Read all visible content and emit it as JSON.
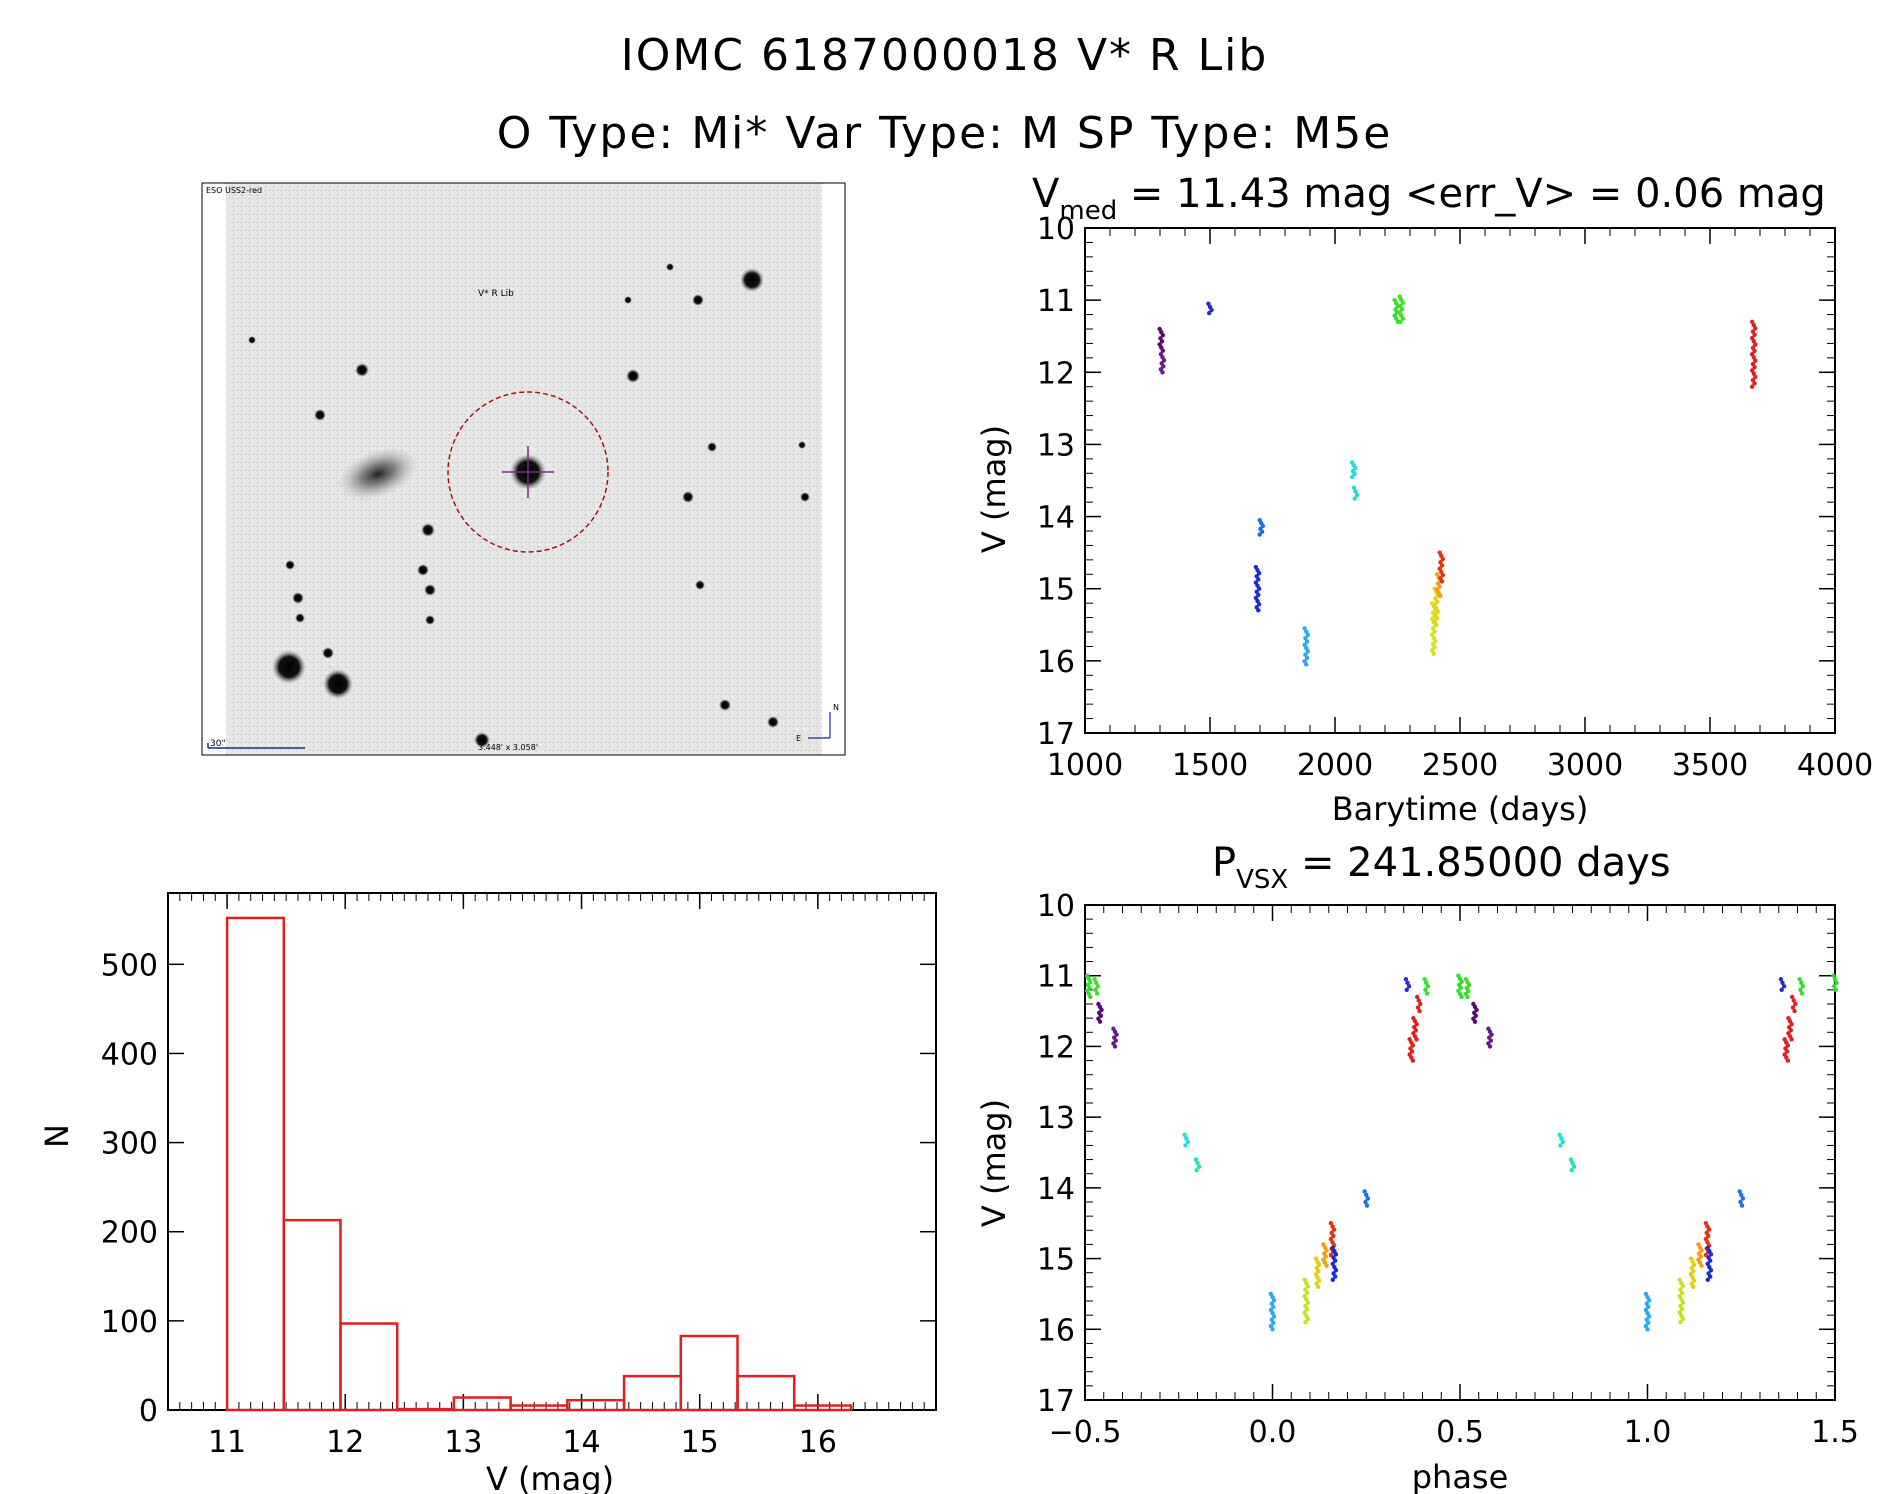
{
  "header": {
    "title_line1": "IOMC 6187000018   V* R Lib",
    "title_line2": "O Type: Mi*  Var Type: M  SP Type: M5e"
  },
  "sky_image": {
    "survey_label": "ESO USS2-red",
    "target_label": "V* R Lib",
    "scale_label": "30\"",
    "size_label": "3.448' x 3.058'",
    "compass_n": "N",
    "compass_e": "E"
  },
  "chart_data": [
    {
      "type": "scatter",
      "name": "light-curve",
      "title_prefix": "V",
      "title_subscript": "med",
      "title_rest": "= 11.43 mag <err_V> = 0.06 mag",
      "xlabel": "Barytime (days)",
      "ylabel": "V (mag)",
      "xlim": [
        1000,
        4000
      ],
      "ylim": [
        10,
        17
      ],
      "y_inverted": true,
      "xticks": [
        1000,
        1500,
        2000,
        2500,
        3000,
        3500,
        4000
      ],
      "yticks": [
        10,
        11,
        12,
        13,
        14,
        15,
        16,
        17
      ],
      "clusters": [
        {
          "x": 1305,
          "y": [
            11.4,
            11.7
          ],
          "color": "#5a0a6e"
        },
        {
          "x": 1310,
          "y": [
            11.75,
            12.0
          ],
          "color": "#6a1a8e"
        },
        {
          "x": 1500,
          "y": [
            11.05,
            11.18
          ],
          "color": "#2a2acc"
        },
        {
          "x": 1690,
          "y": [
            14.7,
            15.3
          ],
          "color": "#1a2ad8"
        },
        {
          "x": 1705,
          "y": [
            14.05,
            14.25
          ],
          "color": "#1a70e8"
        },
        {
          "x": 1885,
          "y": [
            15.55,
            16.05
          ],
          "color": "#2aa8f0"
        },
        {
          "x": 2075,
          "y": [
            13.25,
            13.45
          ],
          "color": "#20e0d8"
        },
        {
          "x": 2082,
          "y": [
            13.6,
            13.75
          ],
          "color": "#20e0c0"
        },
        {
          "x": 2245,
          "y": [
            11.0,
            11.3
          ],
          "color": "#30e030"
        },
        {
          "x": 2265,
          "y": [
            10.95,
            11.3
          ],
          "color": "#40e020"
        },
        {
          "x": 2395,
          "y": [
            15.2,
            15.9
          ],
          "color": "#d8e020"
        },
        {
          "x": 2405,
          "y": [
            15.0,
            15.5
          ],
          "color": "#e8d010"
        },
        {
          "x": 2415,
          "y": [
            14.8,
            15.1
          ],
          "color": "#f0a010"
        },
        {
          "x": 2425,
          "y": [
            14.5,
            14.9
          ],
          "color": "#e83010"
        },
        {
          "x": 3675,
          "y": [
            11.3,
            12.2
          ],
          "color": "#e02020"
        }
      ]
    },
    {
      "type": "bar",
      "name": "histogram",
      "xlabel": "V (mag)",
      "ylabel": "N",
      "xlim": [
        10.5,
        17.0
      ],
      "ylim": [
        0,
        580
      ],
      "xticks": [
        11,
        12,
        13,
        14,
        15,
        16
      ],
      "yticks": [
        0,
        100,
        200,
        300,
        400,
        500
      ],
      "bin_edges": [
        11.0,
        11.48,
        11.96,
        12.44,
        12.92,
        13.4,
        13.88,
        14.36,
        14.84,
        15.32,
        15.8,
        16.28
      ],
      "values": [
        552,
        213,
        97,
        1,
        14,
        5,
        11,
        38,
        83,
        38,
        5
      ],
      "color": "#e02020"
    },
    {
      "type": "scatter",
      "name": "phased-light-curve",
      "title_prefix": "P",
      "title_subscript": "VSX",
      "title_rest": "= 241.85000 days",
      "xlabel": "phase",
      "ylabel": "V (mag)",
      "xlim": [
        -0.5,
        1.5
      ],
      "ylim": [
        10,
        17
      ],
      "y_inverted": true,
      "xticks": [
        -0.5,
        0.0,
        0.5,
        1.0,
        1.5
      ],
      "xtick_labels": [
        "−0.5",
        "0.0",
        "0.5",
        "1.0",
        "1.5"
      ],
      "yticks": [
        10,
        11,
        12,
        13,
        14,
        15,
        16,
        17
      ],
      "clusters": [
        {
          "x": -0.49,
          "y": [
            11.0,
            11.3
          ],
          "color": "#30e030"
        },
        {
          "x": -0.47,
          "y": [
            11.05,
            11.25
          ],
          "color": "#40e020"
        },
        {
          "x": -0.46,
          "y": [
            11.4,
            11.65
          ],
          "color": "#5a0a6e"
        },
        {
          "x": -0.42,
          "y": [
            11.75,
            12.0
          ],
          "color": "#6a1a8e"
        },
        {
          "x": -0.23,
          "y": [
            13.25,
            13.4
          ],
          "color": "#20e0d8"
        },
        {
          "x": -0.2,
          "y": [
            13.6,
            13.75
          ],
          "color": "#20e0c0"
        },
        {
          "x": 0.0,
          "y": [
            15.5,
            16.0
          ],
          "color": "#2aa8f0"
        },
        {
          "x": 0.09,
          "y": [
            15.3,
            15.9
          ],
          "color": "#c8e020"
        },
        {
          "x": 0.12,
          "y": [
            15.0,
            15.4
          ],
          "color": "#e0d010"
        },
        {
          "x": 0.14,
          "y": [
            14.8,
            15.1
          ],
          "color": "#f0a010"
        },
        {
          "x": 0.16,
          "y": [
            14.5,
            14.95
          ],
          "color": "#e83010"
        },
        {
          "x": 0.165,
          "y": [
            14.85,
            15.3
          ],
          "color": "#1a2ad8"
        },
        {
          "x": 0.25,
          "y": [
            14.05,
            14.25
          ],
          "color": "#1a70e8"
        },
        {
          "x": 0.36,
          "y": [
            11.05,
            11.2
          ],
          "color": "#2a2acc"
        },
        {
          "x": 0.37,
          "y": [
            11.9,
            12.2
          ],
          "color": "#e02020"
        },
        {
          "x": 0.38,
          "y": [
            11.6,
            11.9
          ],
          "color": "#e02020"
        },
        {
          "x": 0.39,
          "y": [
            11.3,
            11.5
          ],
          "color": "#e02020"
        },
        {
          "x": 0.41,
          "y": [
            11.05,
            11.25
          ],
          "color": "#30e030"
        },
        {
          "x": 0.5,
          "y": [
            11.0,
            11.3
          ],
          "color": "#30e030"
        },
        {
          "x": 0.52,
          "y": [
            11.05,
            11.3
          ],
          "color": "#40e020"
        },
        {
          "x": 0.54,
          "y": [
            11.4,
            11.65
          ],
          "color": "#5a0a6e"
        },
        {
          "x": 0.58,
          "y": [
            11.75,
            12.0
          ],
          "color": "#6a1a8e"
        },
        {
          "x": 0.77,
          "y": [
            13.25,
            13.4
          ],
          "color": "#20e0d8"
        },
        {
          "x": 0.8,
          "y": [
            13.6,
            13.75
          ],
          "color": "#20e0c0"
        },
        {
          "x": 1.0,
          "y": [
            15.5,
            16.0
          ],
          "color": "#2aa8f0"
        },
        {
          "x": 1.09,
          "y": [
            15.3,
            15.9
          ],
          "color": "#c8e020"
        },
        {
          "x": 1.12,
          "y": [
            15.0,
            15.4
          ],
          "color": "#e0d010"
        },
        {
          "x": 1.14,
          "y": [
            14.8,
            15.1
          ],
          "color": "#f0a010"
        },
        {
          "x": 1.16,
          "y": [
            14.5,
            14.95
          ],
          "color": "#e83010"
        },
        {
          "x": 1.165,
          "y": [
            14.85,
            15.3
          ],
          "color": "#1a2ad8"
        },
        {
          "x": 1.25,
          "y": [
            14.05,
            14.25
          ],
          "color": "#1a70e8"
        },
        {
          "x": 1.36,
          "y": [
            11.05,
            11.2
          ],
          "color": "#2a2acc"
        },
        {
          "x": 1.37,
          "y": [
            11.9,
            12.2
          ],
          "color": "#e02020"
        },
        {
          "x": 1.38,
          "y": [
            11.6,
            11.9
          ],
          "color": "#e02020"
        },
        {
          "x": 1.39,
          "y": [
            11.3,
            11.5
          ],
          "color": "#e02020"
        },
        {
          "x": 1.41,
          "y": [
            11.05,
            11.25
          ],
          "color": "#30e030"
        },
        {
          "x": 1.5,
          "y": [
            11.0,
            11.2
          ],
          "color": "#30e030"
        }
      ]
    }
  ]
}
